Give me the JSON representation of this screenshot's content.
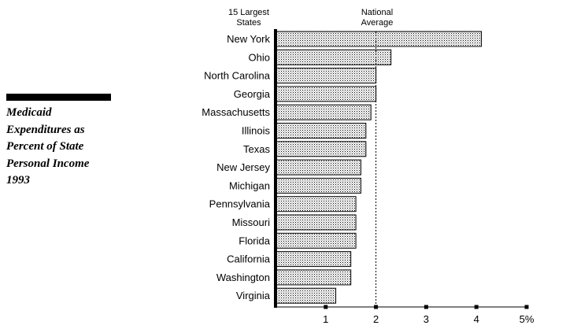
{
  "side_title": {
    "lines": [
      "Medicaid",
      "Expenditures as",
      "Percent of State",
      "Personal Income",
      "1993"
    ]
  },
  "chart_data": {
    "type": "bar",
    "orientation": "horizontal",
    "title": "Medicaid Expenditures as Percent of State Personal Income 1993",
    "category_header": [
      "15 Largest",
      "States"
    ],
    "reference_line": {
      "label": [
        "National",
        "Average"
      ],
      "value": 2.0,
      "style": "dashed"
    },
    "categories": [
      "New York",
      "Ohio",
      "North Carolina",
      "Georgia",
      "Massachusetts",
      "Illinois",
      "Texas",
      "New Jersey",
      "Michigan",
      "Pennsylvania",
      "Missouri",
      "Florida",
      "California",
      "Washington",
      "Virginia"
    ],
    "values": [
      4.1,
      2.3,
      2.0,
      2.0,
      1.9,
      1.8,
      1.8,
      1.7,
      1.7,
      1.6,
      1.6,
      1.6,
      1.5,
      1.5,
      1.2
    ],
    "xlim": [
      0,
      5
    ],
    "xticks": [
      "1",
      "2",
      "3",
      "4",
      "5%"
    ],
    "xtick_values": [
      1,
      2,
      3,
      4,
      5
    ],
    "grid": false,
    "colors": {
      "bar_fill": "#d4d4d4",
      "bar_stroke": "#000000",
      "axis": "#000000"
    }
  }
}
